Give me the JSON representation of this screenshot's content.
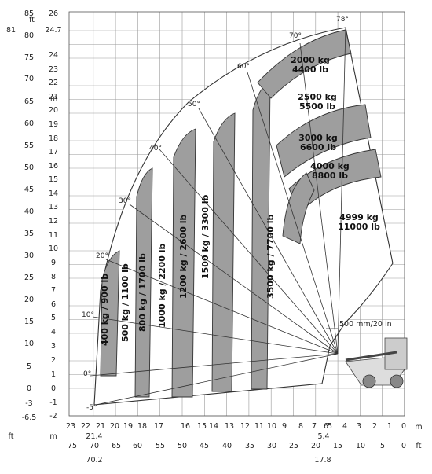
{
  "chart_data": {
    "type": "load-chart",
    "units": {
      "left_ft": "ft",
      "left_m": "m",
      "bottom_ft": "ft",
      "bottom_m": "m"
    },
    "y_ft_ticks": [
      "85",
      "81",
      "80",
      "75",
      "70",
      "65",
      "60",
      "55",
      "50",
      "45",
      "40",
      "35",
      "30",
      "25",
      "20",
      "15",
      "10",
      "5",
      "0",
      "-3",
      "-6.5"
    ],
    "y_m_ticks": [
      "26",
      "24.7",
      "24",
      "23",
      "22",
      "21",
      "20",
      "19",
      "18",
      "17",
      "16",
      "15",
      "14",
      "13",
      "12",
      "11",
      "10",
      "9",
      "8",
      "7",
      "6",
      "5",
      "4",
      "3",
      "2",
      "1",
      "0",
      "-1",
      "-2"
    ],
    "x_m_ticks": [
      "23",
      "22",
      "21.4",
      "21",
      "20",
      "19",
      "18",
      "17",
      "16",
      "15",
      "14",
      "13",
      "12",
      "11",
      "10",
      "9",
      "8",
      "7",
      "6",
      "5.4",
      "5",
      "4",
      "3",
      "2",
      "1",
      "0"
    ],
    "x_ft_ticks": [
      "75",
      "70",
      "70.2",
      "65",
      "60",
      "55",
      "50",
      "45",
      "40",
      "35",
      "30",
      "25",
      "20",
      "17.8",
      "15",
      "10",
      "5",
      "0"
    ],
    "angles": [
      "78°",
      "70°",
      "60°",
      "50°",
      "40°",
      "30°",
      "20°",
      "10°",
      "0°",
      "-5°"
    ],
    "annotation": "500 mm/20 in",
    "zones": [
      {
        "label": "400 kg / 900 lb"
      },
      {
        "label": "500 kg / 1100 lb"
      },
      {
        "label": "800 kg / 1700 lb"
      },
      {
        "label": "1000 kg / 2200 lb"
      },
      {
        "label": "1200 kg / 2600 lb"
      },
      {
        "label": "1500 kg / 3300 lb"
      },
      {
        "label": "3500 kg / 7700 lb"
      },
      {
        "label1": "2000 kg",
        "label2": "4400 lb"
      },
      {
        "label1": "2500 kg",
        "label2": "5500 lb"
      },
      {
        "label1": "3000 kg",
        "label2": "6600 lb"
      },
      {
        "label1": "4000 kg",
        "label2": "8800 lb"
      },
      {
        "label1": "4999 kg",
        "label2": "11000 lb"
      }
    ]
  }
}
